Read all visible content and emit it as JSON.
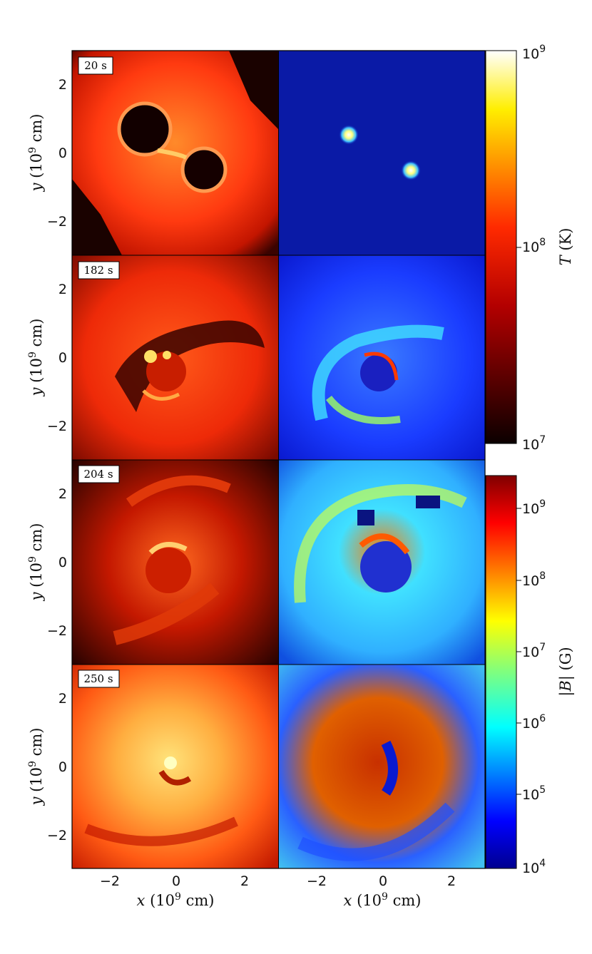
{
  "figure": {
    "time_labels": [
      "20 s",
      "182 s",
      "204 s",
      "250 s"
    ],
    "axes": {
      "x_label_main": "x",
      "x_label_units": "(10",
      "x_label_exp": "9",
      "x_label_tail": " cm)",
      "y_label_main": "y",
      "y_label_units": "(10",
      "y_label_exp": "9",
      "y_label_tail": " cm)",
      "x_ticks": [
        "−2",
        "0",
        "2"
      ],
      "y_ticks": [
        "2",
        "0",
        "−2"
      ]
    },
    "colorbar_temperature": {
      "label_main": "T",
      "label_units": " (K)",
      "tick_base": "10",
      "tick_exps": [
        "9",
        "8",
        "7"
      ],
      "range_log10": [
        7,
        9
      ],
      "colormap": "hot"
    },
    "colorbar_field": {
      "label_main": "|B|",
      "label_units": " (G)",
      "tick_base": "10",
      "tick_exps": [
        "9",
        "8",
        "7",
        "6",
        "5",
        "4"
      ],
      "range_log10": [
        4,
        9.5
      ],
      "colormap": "jet"
    }
  }
}
